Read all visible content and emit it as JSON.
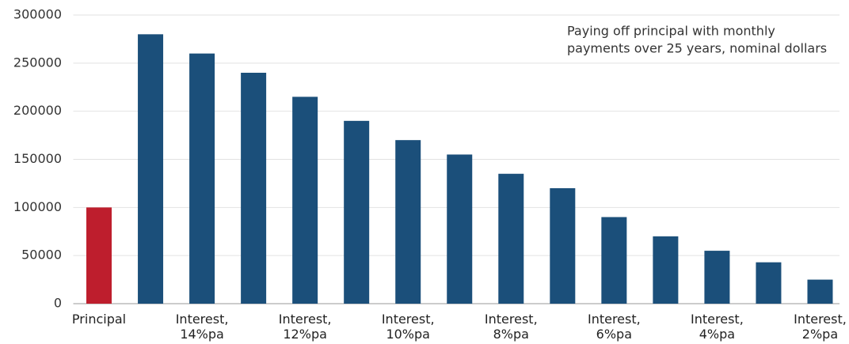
{
  "chart_data": {
    "type": "bar",
    "annotation": [
      "Paying off principal with monthly",
      "payments over 25 years, nominal dollars"
    ],
    "categories": [
      "Principal",
      null,
      "Interest, 14%pa",
      null,
      "Interest, 12%pa",
      null,
      "Interest, 10%pa",
      null,
      "Interest, 8%pa",
      null,
      "Interest, 6%pa",
      null,
      "Interest, 4%pa",
      null,
      "Interest, 2%pa"
    ],
    "values": [
      100000,
      280000,
      260000,
      240000,
      215000,
      190000,
      170000,
      155000,
      135000,
      120000,
      90000,
      70000,
      55000,
      43000,
      25000
    ],
    "colors": [
      "#be1e2d",
      "#1b4f7a",
      "#1b4f7a",
      "#1b4f7a",
      "#1b4f7a",
      "#1b4f7a",
      "#1b4f7a",
      "#1b4f7a",
      "#1b4f7a",
      "#1b4f7a",
      "#1b4f7a",
      "#1b4f7a",
      "#1b4f7a",
      "#1b4f7a",
      "#1b4f7a"
    ],
    "ylim": [
      0,
      300000
    ],
    "yticks": [
      0,
      50000,
      100000,
      150000,
      200000,
      250000,
      300000
    ],
    "grid": true
  }
}
